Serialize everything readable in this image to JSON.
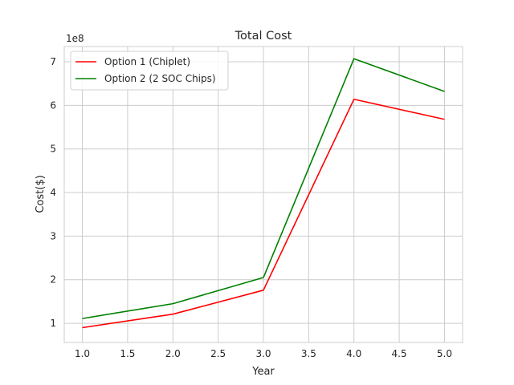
{
  "chart_data": {
    "type": "line",
    "title": "Total Cost",
    "xlabel": "Year",
    "ylabel": "Cost($)",
    "y_offset_text": "1e8",
    "y_scale_factor": 100000000,
    "xlim": [
      0.8,
      5.2
    ],
    "ylim": [
      56000000,
      735000000
    ],
    "xticks": [
      1.0,
      1.5,
      2.0,
      2.5,
      3.0,
      3.5,
      4.0,
      4.5,
      5.0
    ],
    "xtick_labels": [
      "1.0",
      "1.5",
      "2.0",
      "2.5",
      "3.0",
      "3.5",
      "4.0",
      "4.5",
      "5.0"
    ],
    "yticks": [
      100000000,
      200000000,
      300000000,
      400000000,
      500000000,
      600000000,
      700000000
    ],
    "ytick_labels": [
      "1",
      "2",
      "3",
      "4",
      "5",
      "6",
      "7"
    ],
    "grid": true,
    "legend_position": "top-left",
    "x": [
      1.0,
      2.0,
      3.0,
      4.0,
      5.0
    ],
    "series": [
      {
        "name": "Option 1 (Chiplet)",
        "color": "#ff0000",
        "values": [
          90000000,
          121000000,
          176000000,
          614000000,
          568000000
        ]
      },
      {
        "name": "Option 2 (2 SOC Chips)",
        "color": "#008000",
        "values": [
          111000000,
          145000000,
          205000000,
          707000000,
          632000000
        ]
      }
    ]
  }
}
